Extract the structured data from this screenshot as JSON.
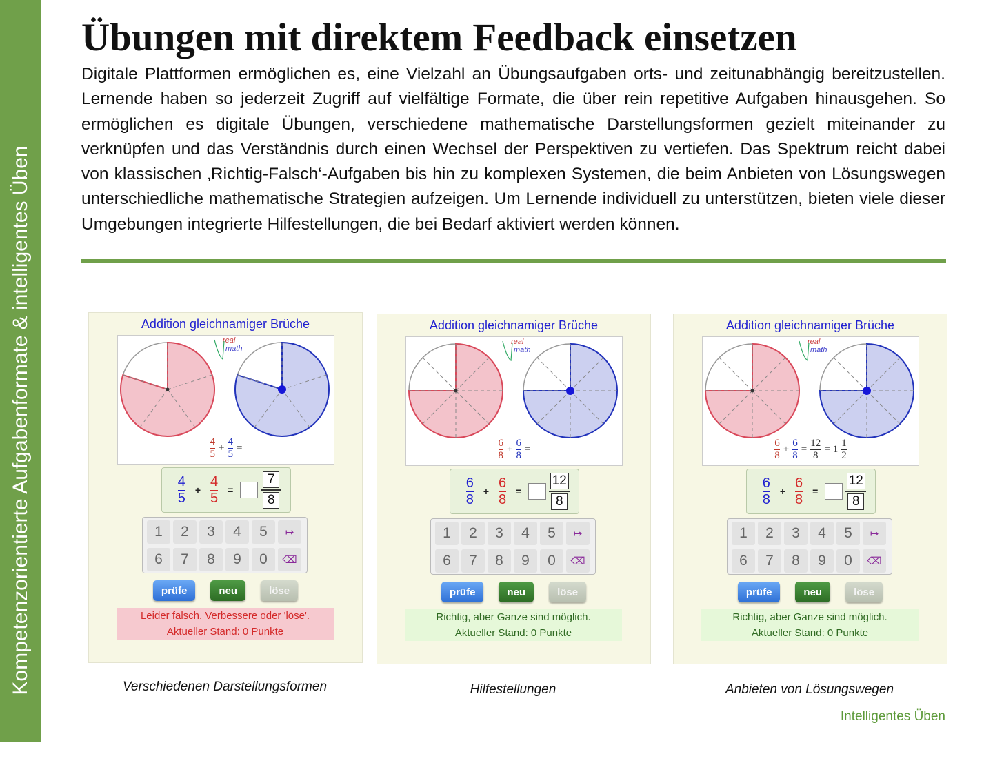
{
  "sidebar": "Kompetenzorientierte Aufgabenformate & intelligentes Üben",
  "title": "Übungen mit direktem Feedback einsetzen",
  "body": "Digitale Plattformen ermöglichen es, eine Vielzahl an Übungsaufgaben orts- und zeitunabhängig bereitzustellen. Lernende haben so jederzeit Zugriff auf vielfältige Formate, die über rein repetitive Aufgaben hinausgehen. So ermöglichen es digitale Übungen, verschiedene mathematische Darstellungsformen gezielt miteinander zu verknüpfen und das Verständnis durch einen Wechsel der Perspektiven zu vertiefen. Das Spektrum reicht dabei von klassischen ‚Richtig-Falsch‘-Aufgaben bis hin zu komplexen Systemen, die beim Anbieten von Lösungswegen unterschiedliche mathematische Strategien aufzeigen. Um Lernende individuell zu unterstützen, bieten viele dieser Umgebungen integrierte Hilfestellungen, die bei Bedarf aktiviert werden können.",
  "logo": [
    "real",
    "math"
  ],
  "symbols": {
    "plus": "+",
    "equals": "="
  },
  "keypad": [
    "1",
    "2",
    "3",
    "4",
    "5",
    "↦",
    "6",
    "7",
    "8",
    "9",
    "0",
    "⌫"
  ],
  "buttons": [
    "prüfe",
    "neu",
    "löse"
  ],
  "panels": [
    {
      "heading": "Addition gleichnamiger Brüche",
      "terms": [
        {
          "num": 4,
          "den": 5
        },
        {
          "num": 4,
          "den": 5
        }
      ],
      "answer": {
        "num": 7,
        "den": 8
      },
      "feedback": [
        "Leider falsch. Verbessere oder 'löse'.",
        "Aktueller Stand: 0 Punkte"
      ],
      "feedback_color": "#f6c9cf",
      "feedback_text_color": "#d42a2a",
      "caption": "Verschiedenen Darstellungsformen"
    },
    {
      "heading": "Addition gleichnamiger Brüche",
      "terms": [
        {
          "num": 6,
          "den": 8
        },
        {
          "num": 6,
          "den": 8
        }
      ],
      "answer": {
        "num": 12,
        "den": 8
      },
      "feedback": [
        "Richtig, aber Ganze sind möglich.",
        "Aktueller Stand: 0 Punkte"
      ],
      "feedback_color": "#e6f8d9",
      "feedback_text_color": "#2f6a22",
      "caption": "Hilfestellungen"
    },
    {
      "heading": "Addition gleichnamiger Brüche",
      "terms": [
        {
          "num": 6,
          "den": 8
        },
        {
          "num": 6,
          "den": 8
        }
      ],
      "answer": {
        "num": 12,
        "den": 8
      },
      "solution": {
        "fraction": {
          "num": 12,
          "den": 8
        },
        "mixed": {
          "whole": 1,
          "num": 1,
          "den": 2
        }
      },
      "feedback": [
        "Richtig, aber Ganze sind möglich.",
        "Aktueller Stand: 0 Punkte"
      ],
      "feedback_color": "#e6f8d9",
      "feedback_text_color": "#2f6a22",
      "caption": "Anbieten von Lösungswegen"
    }
  ],
  "footer": "Intelligentes Üben"
}
